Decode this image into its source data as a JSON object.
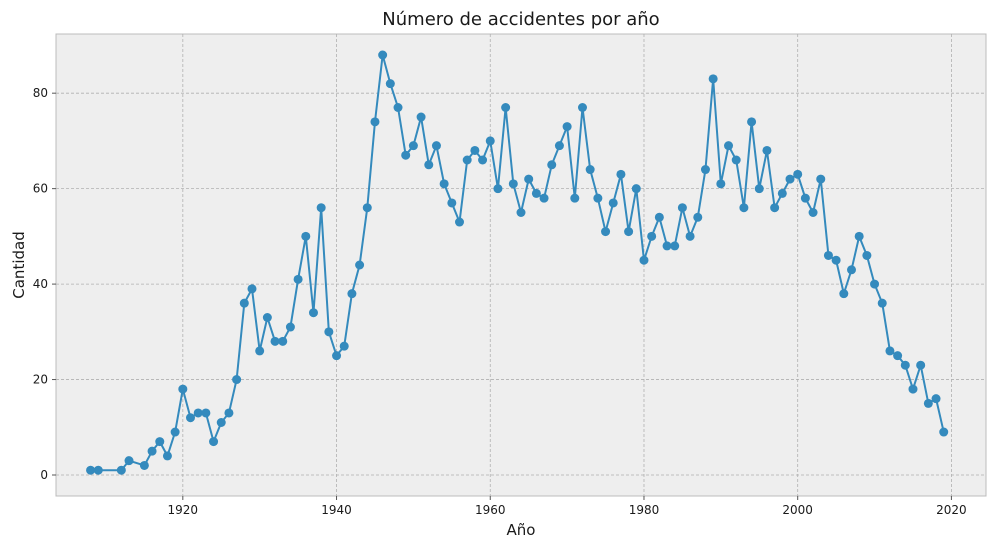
{
  "chart_data": {
    "type": "line",
    "title": "Número de accidentes por año",
    "xlabel": "Año",
    "ylabel": "Cantidad",
    "xlim": [
      1903.5,
      2024.5
    ],
    "ylim": [
      -4.4,
      92.4
    ],
    "x_ticks": [
      1920,
      1940,
      1960,
      1980,
      2000,
      2020
    ],
    "y_ticks": [
      0,
      20,
      40,
      60,
      80
    ],
    "grid": true,
    "colors": {
      "line": "#348abd",
      "plot_bg": "#eeeeee",
      "frame": "#bcbcbc"
    },
    "series": [
      {
        "x": [
          1908,
          1909,
          1912,
          1913,
          1915,
          1916,
          1917,
          1918,
          1919,
          1920,
          1921,
          1922,
          1923,
          1924,
          1925,
          1926,
          1927,
          1928,
          1929,
          1930,
          1931,
          1932,
          1933,
          1934,
          1935,
          1936,
          1937,
          1938,
          1939,
          1940,
          1941,
          1942,
          1943,
          1944,
          1945,
          1946,
          1947,
          1948,
          1949,
          1950,
          1951,
          1952,
          1953,
          1954,
          1955,
          1956,
          1957,
          1958,
          1959,
          1960,
          1961,
          1962,
          1963,
          1964,
          1965,
          1966,
          1967,
          1968,
          1969,
          1970,
          1971,
          1972,
          1973,
          1974,
          1975,
          1976,
          1977,
          1978,
          1979,
          1980,
          1981,
          1982,
          1983,
          1984,
          1985,
          1986,
          1987,
          1988,
          1989,
          1990,
          1991,
          1992,
          1993,
          1994,
          1995,
          1996,
          1997,
          1998,
          1999,
          2000,
          2001,
          2002,
          2003,
          2004,
          2005,
          2006,
          2007,
          2008,
          2009,
          2010,
          2011,
          2012,
          2013,
          2014,
          2015,
          2016,
          2017,
          2018,
          2019
        ],
        "values": [
          1,
          1,
          1,
          3,
          2,
          5,
          7,
          4,
          9,
          18,
          12,
          13,
          13,
          7,
          11,
          13,
          20,
          36,
          39,
          26,
          33,
          28,
          28,
          31,
          41,
          50,
          34,
          56,
          30,
          25,
          27,
          38,
          44,
          56,
          74,
          88,
          82,
          77,
          67,
          69,
          75,
          65,
          69,
          61,
          57,
          53,
          66,
          68,
          66,
          70,
          60,
          77,
          61,
          55,
          62,
          59,
          58,
          65,
          69,
          73,
          58,
          77,
          64,
          58,
          51,
          57,
          63,
          51,
          60,
          45,
          50,
          54,
          48,
          48,
          56,
          50,
          54,
          64,
          83,
          61,
          69,
          66,
          56,
          74,
          60,
          68,
          56,
          59,
          62,
          63,
          58,
          55,
          62,
          46,
          45,
          38,
          43,
          50,
          46,
          40,
          36,
          26,
          25,
          23,
          18,
          23,
          15,
          16,
          9
        ]
      }
    ]
  }
}
